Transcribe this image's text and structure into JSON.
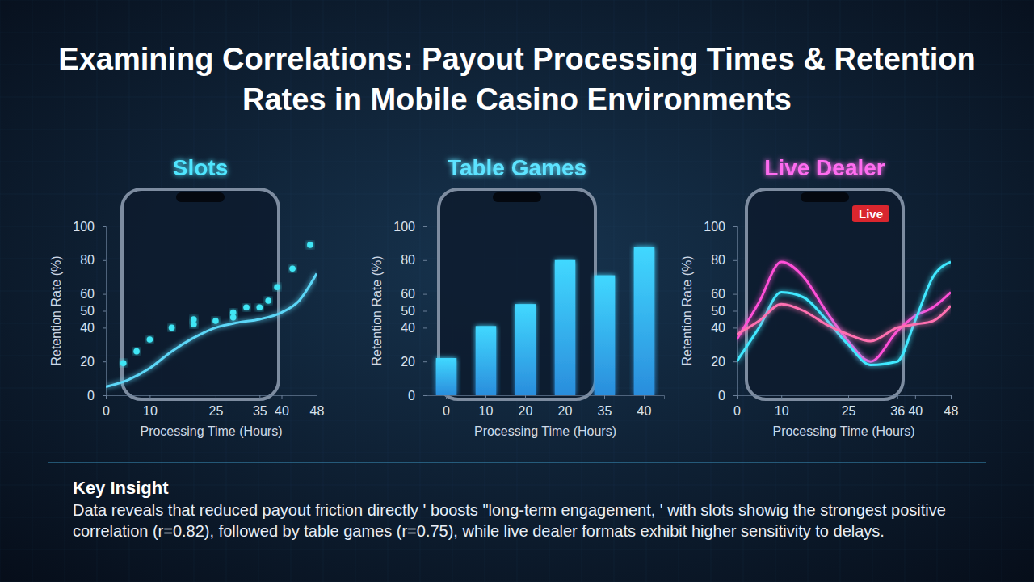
{
  "title": "Examining Correlations: Payout Processing Times & Retention Rates in Mobile Casino Environments",
  "chart_data": [
    {
      "type": "scatter",
      "title": "Slots",
      "x_label": "Processing Time (Hours)",
      "y_label": "Retention Rate (%)",
      "xlim": [
        0,
        48
      ],
      "xticks": [
        0,
        10,
        25,
        35,
        40,
        48
      ],
      "ylim": [
        0,
        100
      ],
      "yticks": [
        0,
        20,
        40,
        50,
        60,
        80,
        100
      ],
      "grid": false,
      "series": [
        {
          "type": "scatter",
          "color": "#3fe6f5",
          "marker": "circle",
          "x": [
            4,
            7,
            10,
            15,
            20,
            20,
            25,
            29,
            29,
            32,
            35,
            37,
            39,
            42.5,
            46.5
          ],
          "values": [
            19,
            26,
            33,
            40,
            45,
            42,
            44,
            46,
            49,
            52,
            52,
            56,
            64,
            75,
            89
          ]
        },
        {
          "type": "line",
          "color": "#5cd6f7",
          "x": [
            0,
            5,
            10,
            15,
            20,
            25,
            30,
            35,
            40,
            44,
            48
          ],
          "values": [
            5,
            9,
            16,
            26,
            34,
            40,
            43,
            45,
            49,
            56,
            72
          ]
        }
      ]
    },
    {
      "type": "bar",
      "title": "Table Games",
      "x_label": "Processing Time (Hours)",
      "y_label": "Retention Rate (%)",
      "categories": [
        "0",
        "10",
        "20",
        "20",
        "35",
        "40"
      ],
      "values": [
        22,
        41,
        54,
        80,
        71,
        88
      ],
      "color": "#2f9df5",
      "ylim": [
        0,
        100
      ],
      "yticks": [
        0,
        20,
        40,
        50,
        60,
        80,
        100
      ],
      "grid": false
    },
    {
      "type": "line",
      "title": "Live Dealer",
      "badge": "Live",
      "x_label": "Processing Time (Hours)",
      "y_label": "Retention Rate (%)",
      "x": [
        0,
        5,
        10,
        15,
        20,
        25,
        30,
        36,
        40,
        44,
        48
      ],
      "xlim": [
        0,
        48
      ],
      "xticks": [
        0,
        10,
        25,
        36,
        40,
        48
      ],
      "ylim": [
        0,
        100
      ],
      "yticks": [
        0,
        20,
        40,
        50,
        60,
        80,
        100
      ],
      "grid": false,
      "series": [
        {
          "color": "#ff4fd8",
          "values": [
            33,
            55,
            79,
            70,
            50,
            32,
            20,
            38,
            47,
            52,
            61
          ]
        },
        {
          "color": "#3fe8ff",
          "values": [
            20,
            40,
            61,
            58,
            45,
            30,
            18,
            20,
            44,
            70,
            79
          ]
        },
        {
          "color": "#ff6fb0",
          "values": [
            36,
            44,
            54,
            50,
            42,
            36,
            32,
            40,
            42,
            44,
            53
          ]
        }
      ]
    }
  ],
  "key_insight": {
    "heading": "Key Insight",
    "text": "Data reveals that reduced payout friction directly ' boosts \"long-term engagement, ' with slots showig the strongest positive correlation (r=0.82), followed by table games (r=0.75), while live dealer formats exhibit higher sensitivity to delays."
  }
}
